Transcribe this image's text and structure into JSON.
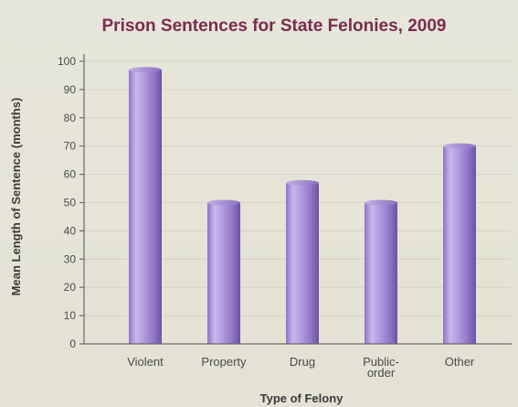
{
  "chart_data": {
    "type": "bar",
    "title": "Prison Sentences for State Felonies, 2009",
    "xlabel": "Type of Felony",
    "ylabel": "Mean Length of Sentence (months)",
    "categories": [
      [
        "Violent"
      ],
      [
        "Property"
      ],
      [
        "Drug"
      ],
      [
        "Public-",
        "order"
      ],
      [
        "Other"
      ]
    ],
    "values": [
      97,
      50,
      57,
      50,
      70
    ],
    "ylim": [
      0,
      100
    ],
    "yticks": [
      0,
      10,
      20,
      30,
      40,
      50,
      60,
      70,
      80,
      90,
      100
    ],
    "grid": true,
    "legend": "none",
    "bar_color": "#a58ad6",
    "title_color": "#7a2c4f"
  }
}
